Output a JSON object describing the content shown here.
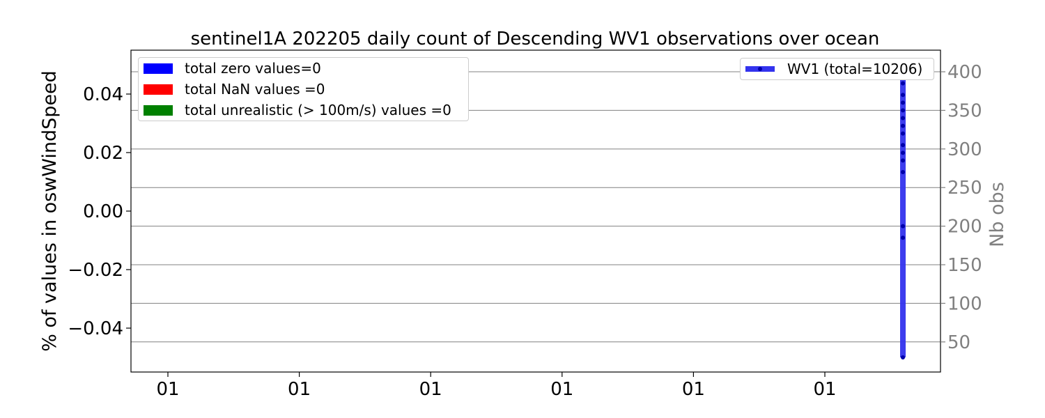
{
  "chart_data": {
    "type": "line",
    "title": "sentinel1A 202205 daily count of Descending WV1 observations over ocean",
    "ylabel_left": "% of values in oswWindSpeed",
    "ylabel_right": "Nb obs",
    "x_tick_labels": [
      "01",
      "01",
      "01",
      "01",
      "01",
      "01"
    ],
    "ylim_left": [
      -0.055,
      0.055
    ],
    "yticks_left": [
      0.04,
      0.02,
      0.0,
      -0.02,
      -0.04
    ],
    "ytick_labels_left": [
      "0.04",
      "0.02",
      "0.00",
      "−0.02",
      "−0.04"
    ],
    "ylim_right": [
      11,
      428
    ],
    "yticks_right": [
      50,
      100,
      150,
      200,
      250,
      300,
      350,
      400
    ],
    "ytick_labels_right": [
      "50",
      "100",
      "150",
      "200",
      "250",
      "300",
      "350",
      "400"
    ],
    "grid": "horizontal, right axis",
    "bar_legend": {
      "placement": "upper-left",
      "entries": [
        {
          "label": "total zero values=0",
          "color": "#0000ff"
        },
        {
          "label": "total NaN values =0",
          "color": "#ff0000"
        },
        {
          "label": "total unrealistic (> 100m/s) values =0",
          "color": "#008000"
        }
      ]
    },
    "line_legend": {
      "placement": "upper-right",
      "label": "WV1 (total=10206)",
      "color": "#0000ff"
    },
    "series": [
      {
        "name": "WV1 (total=10206)",
        "color": "#0000ff",
        "axis": "right",
        "y": [
          30,
          185,
          200,
          270,
          285,
          295,
          305,
          320,
          330,
          340,
          350,
          360,
          370,
          385,
          395,
          405,
          410
        ]
      }
    ],
    "right_axis_color": "#808080"
  }
}
